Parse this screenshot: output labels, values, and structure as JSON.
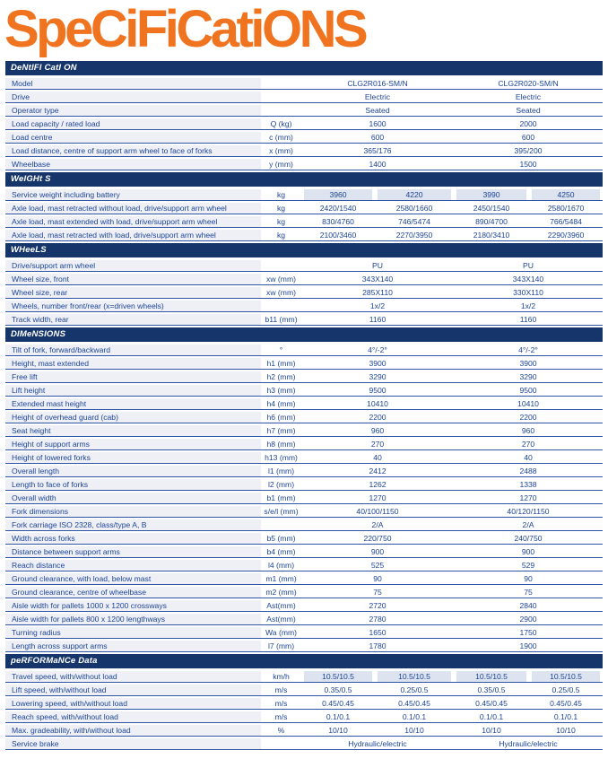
{
  "page_title": "SpeCiFiCatiONS",
  "colors": {
    "title_orange": "#f0741f",
    "section_bar_navy": "#16356b",
    "row_text_blue": "#1c4398",
    "label_column_bg": "#eef0f5",
    "shaded_cell_bg": "#dde4ef",
    "row_border_blue": "#2e55a4"
  },
  "models": [
    "CLG2R016-SM/N",
    "CLG2R020-SM/N"
  ],
  "table": {
    "sections": [
      {
        "header": "DeNtIFI CatI ON",
        "rows": [
          {
            "label": "Model",
            "unit": "",
            "shaded": false,
            "values": [
              "CLG2R016-SM/N",
              "CLG2R020-SM/N"
            ]
          },
          {
            "label": "Drive",
            "unit": "",
            "shaded": false,
            "values": [
              "Electric",
              "Electric"
            ]
          },
          {
            "label": "Operator type",
            "unit": "",
            "shaded": false,
            "values": [
              "Seated",
              "Seated"
            ]
          },
          {
            "label": "Load capacity / rated load",
            "unit": "Q (kg)",
            "shaded": false,
            "values": [
              "1600",
              "2000"
            ]
          },
          {
            "label": "Load centre",
            "unit": "c (mm)",
            "shaded": false,
            "values": [
              "600",
              "600"
            ]
          },
          {
            "label": " Load distance, centre of support arm wheel to face of forks",
            "unit": "x (mm)",
            "shaded": false,
            "values": [
              "365/176",
              "395/200"
            ]
          },
          {
            "label": " Wheelbase",
            "unit": "y (mm)",
            "shaded": false,
            "values": [
              "1400",
              "1500"
            ]
          }
        ]
      },
      {
        "header": "WeIGHt S",
        "rows": [
          {
            "label": "Service weight including battery",
            "unit": "kg",
            "shaded": true,
            "values": [
              "3960",
              "4220",
              "3990",
              "4250"
            ]
          },
          {
            "label": "Axle load, mast retracted without load, drive/support arm wheel",
            "unit": "kg",
            "shaded": false,
            "values": [
              "2420/1540",
              "2580/1660",
              "2450/1540",
              "2580/1670"
            ]
          },
          {
            "label": "Axle load, mast extended with load, drive/support arm wheel",
            "unit": "kg",
            "shaded": false,
            "values": [
              "830/4760",
              "746/5474",
              "890/4700",
              "766/5484"
            ]
          },
          {
            "label": "Axle load, mast retracted with load, drive/support arm wheel",
            "unit": "kg",
            "shaded": false,
            "values": [
              "2100/3460",
              "2270/3950",
              "2180/3410",
              "2290/3960"
            ]
          }
        ]
      },
      {
        "header": "WHeeLS",
        "rows": [
          {
            "label": "Drive/support arm wheel",
            "unit": "",
            "shaded": false,
            "values": [
              "PU",
              "PU"
            ]
          },
          {
            "label": "Wheel size, front",
            "unit": "xw (mm)",
            "shaded": false,
            "values": [
              "343X140",
              "343X140"
            ]
          },
          {
            "label": "Wheel size, rear",
            "unit": "xw (mm)",
            "shaded": false,
            "values": [
              "285X110",
              "330X110"
            ]
          },
          {
            "label": "Wheels, number front/rear (x=driven wheels)",
            "unit": "",
            "shaded": false,
            "values": [
              "1x/2",
              "1x/2"
            ]
          },
          {
            "label": "Track width, rear",
            "unit": "b11 (mm)",
            "shaded": false,
            "values": [
              "1160",
              "1160"
            ]
          }
        ]
      },
      {
        "header": "DIMeNSIONS",
        "rows": [
          {
            "label": "Tilt of fork, forward/backward",
            "unit": "°",
            "shaded": false,
            "values": [
              "4°/-2°",
              "4°/-2°"
            ]
          },
          {
            "label": "Height, mast extended",
            "unit": "h1 (mm)",
            "shaded": false,
            "values": [
              "3900",
              "3900"
            ]
          },
          {
            "label": "Free lift",
            "unit": "h2 (mm)",
            "shaded": false,
            "values": [
              "3290",
              "3290"
            ]
          },
          {
            "label": "Lift height",
            "unit": "h3 (mm)",
            "shaded": false,
            "values": [
              "9500",
              "9500"
            ]
          },
          {
            "label": "Extended mast height",
            "unit": "h4 (mm)",
            "shaded": false,
            "values": [
              "10410",
              "10410"
            ]
          },
          {
            "label": "Height of overhead guard (cab)",
            "unit": "h6 (mm)",
            "shaded": false,
            "values": [
              "2200",
              "2200"
            ]
          },
          {
            "label": "Seat height",
            "unit": "h7 (mm)",
            "shaded": false,
            "values": [
              "960",
              "960"
            ]
          },
          {
            "label": "Height of support arms",
            "unit": "h8 (mm)",
            "shaded": false,
            "values": [
              "270",
              "270"
            ]
          },
          {
            "label": "Height of lowered forks",
            "unit": "h13 (mm)",
            "shaded": false,
            "values": [
              "40",
              "40"
            ]
          },
          {
            "label": "Overall length",
            "unit": "l1 (mm)",
            "shaded": false,
            "values": [
              "2412",
              "2488"
            ]
          },
          {
            "label": "Length to face of forks",
            "unit": "l2 (mm)",
            "shaded": false,
            "values": [
              "1262",
              "1338"
            ]
          },
          {
            "label": "Overall width",
            "unit": "b1 (mm)",
            "shaded": false,
            "values": [
              "1270",
              "1270"
            ]
          },
          {
            "label": "Fork dimensions",
            "unit": "s/e/l (mm)",
            "shaded": false,
            "values": [
              "40/100/1150",
              "40/120/1150"
            ]
          },
          {
            "label": "Fork carriage ISO 2328, class/type A, B",
            "unit": "",
            "shaded": false,
            "values": [
              "2/A",
              "2/A"
            ]
          },
          {
            "label": "Width across forks",
            "unit": "b5 (mm)",
            "shaded": false,
            "values": [
              "220/750",
              "240/750"
            ]
          },
          {
            "label": "Distance between support arms",
            "unit": "b4 (mm)",
            "shaded": false,
            "values": [
              "900",
              "900"
            ]
          },
          {
            "label": "Reach distance",
            "unit": "l4 (mm)",
            "shaded": false,
            "values": [
              "525",
              "529"
            ]
          },
          {
            "label": "Ground clearance, with load, below mast",
            "unit": "m1 (mm)",
            "shaded": false,
            "values": [
              "90",
              "90"
            ]
          },
          {
            "label": "Ground clearance, centre of wheelbase",
            "unit": "m2 (mm)",
            "shaded": false,
            "values": [
              "75",
              "75"
            ]
          },
          {
            "label": "Aisle width for pallets 1000 x 1200 crossways",
            "unit": "Ast(mm)",
            "shaded": false,
            "values": [
              "2720",
              "2840"
            ]
          },
          {
            "label": "Aisle width for pallets 800 x 1200 lengthways",
            "unit": "Ast(mm)",
            "shaded": false,
            "values": [
              "2780",
              "2900"
            ]
          },
          {
            "label": "Turning radius",
            "unit": "Wa (mm)",
            "shaded": false,
            "values": [
              "1650",
              "1750"
            ]
          },
          {
            "label": "Length across support arms",
            "unit": "l7 (mm)",
            "shaded": false,
            "values": [
              "1780",
              "1900"
            ]
          }
        ]
      },
      {
        "header": "peRFORMaNCe Data",
        "rows": [
          {
            "label": "Travel speed, with/without load",
            "unit": "km/h",
            "shaded": true,
            "values": [
              "10.5/10.5",
              "10.5/10.5",
              "10.5/10.5",
              "10.5/10.5"
            ]
          },
          {
            "label": "Lift speed, with/without load",
            "unit": "m/s",
            "shaded": false,
            "values": [
              "0.35/0.5",
              "0.25/0.5",
              "0.35/0.5",
              "0.25/0.5"
            ]
          },
          {
            "label": "Lowering speed, with/without load",
            "unit": "m/s",
            "shaded": false,
            "values": [
              "0.45/0.45",
              "0.45/0.45",
              "0.45/0.45",
              "0.45/0.45"
            ]
          },
          {
            "label": "Reach speed, with/without load",
            "unit": "m/s",
            "shaded": false,
            "values": [
              "0.1/0.1",
              "0.1/0.1",
              "0.1/0.1",
              "0.1/0.1"
            ]
          },
          {
            "label": "Max. gradeability, with/without load",
            "unit": "%",
            "shaded": false,
            "values": [
              "10/10",
              "10/10",
              "10/10",
              "10/10"
            ]
          },
          {
            "label": "Service brake",
            "unit": "",
            "shaded": false,
            "values": [
              "Hydraulic/electric",
              "Hydraulic/electric"
            ]
          }
        ]
      }
    ]
  }
}
